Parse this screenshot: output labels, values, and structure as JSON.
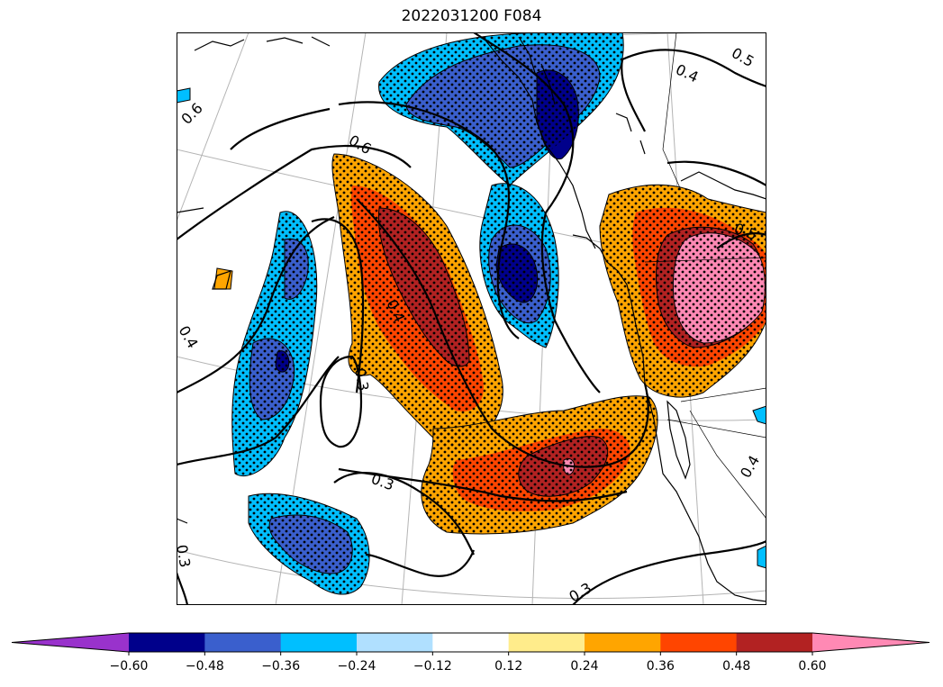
{
  "title": "2022031200 F084",
  "colorbar": {
    "bounds": [
      -0.6,
      -0.48,
      -0.36,
      -0.24,
      -0.12,
      0.12,
      0.24,
      0.36,
      0.48,
      0.6
    ],
    "tick_labels": [
      "−0.60",
      "−0.48",
      "−0.36",
      "−0.24",
      "−0.12",
      "0.12",
      "0.24",
      "0.36",
      "0.48",
      "0.60"
    ],
    "colors": [
      "#9932cc",
      "#00008b",
      "#3a5fcd",
      "#00bfff",
      "#b0e0ff",
      "#ffffff",
      "#ffec8b",
      "#ffa500",
      "#ff4500",
      "#b22222",
      "#ff89b4"
    ],
    "extend": "both"
  },
  "contour_labels": [
    "0.5",
    "0.4",
    "0.6",
    "0.6",
    "0.5",
    "0.4",
    "0.4",
    "0.3",
    "0.3",
    "0.3",
    "0.3",
    "0.4"
  ],
  "stippling": "dots over significant areas",
  "colors": {
    "outline": "#000000",
    "graticule": "#b4b4b4"
  }
}
